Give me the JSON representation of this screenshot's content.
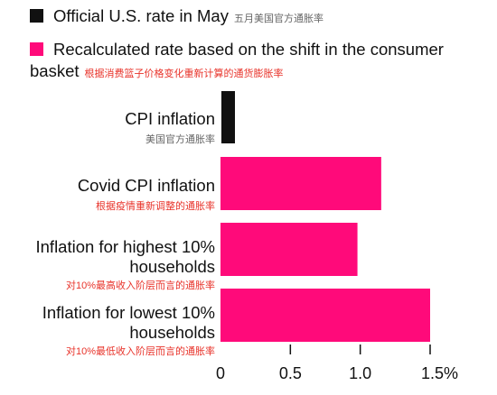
{
  "legend": {
    "items": [
      {
        "label": "Official U.S. rate in May",
        "label_cn": "五月美国官方通胀率",
        "color": "#111111"
      },
      {
        "label": "Recalculated rate based on the shift in the consumer basket",
        "label_cn": "根据消费篮子价格变化重新计算的通货膨胀率",
        "color": "#ff0a7a"
      }
    ]
  },
  "chart_data": {
    "type": "bar",
    "orientation": "horizontal",
    "categories": [
      "CPI inflation",
      "Covid CPI inflation",
      "Inflation for highest 10% households",
      "Inflation for lowest 10% households"
    ],
    "categories_cn": [
      "美国官方通胀率",
      "根据疫情重新调整的通胀率",
      "对10%最高收入阶层而言的通胀率",
      "对10%最低收入阶层而言的通胀率"
    ],
    "values": [
      0.1,
      1.15,
      0.98,
      1.5
    ],
    "colors": [
      "#111111",
      "#ff0a7a",
      "#ff0a7a",
      "#ff0a7a"
    ],
    "xlim": [
      0,
      1.5
    ],
    "ticks": [
      0,
      0.5,
      1.0,
      1.5
    ],
    "tick_labels": [
      "0",
      "0.5",
      "1.0",
      "1.5%"
    ],
    "grid": false,
    "legend_position": "top-left"
  }
}
